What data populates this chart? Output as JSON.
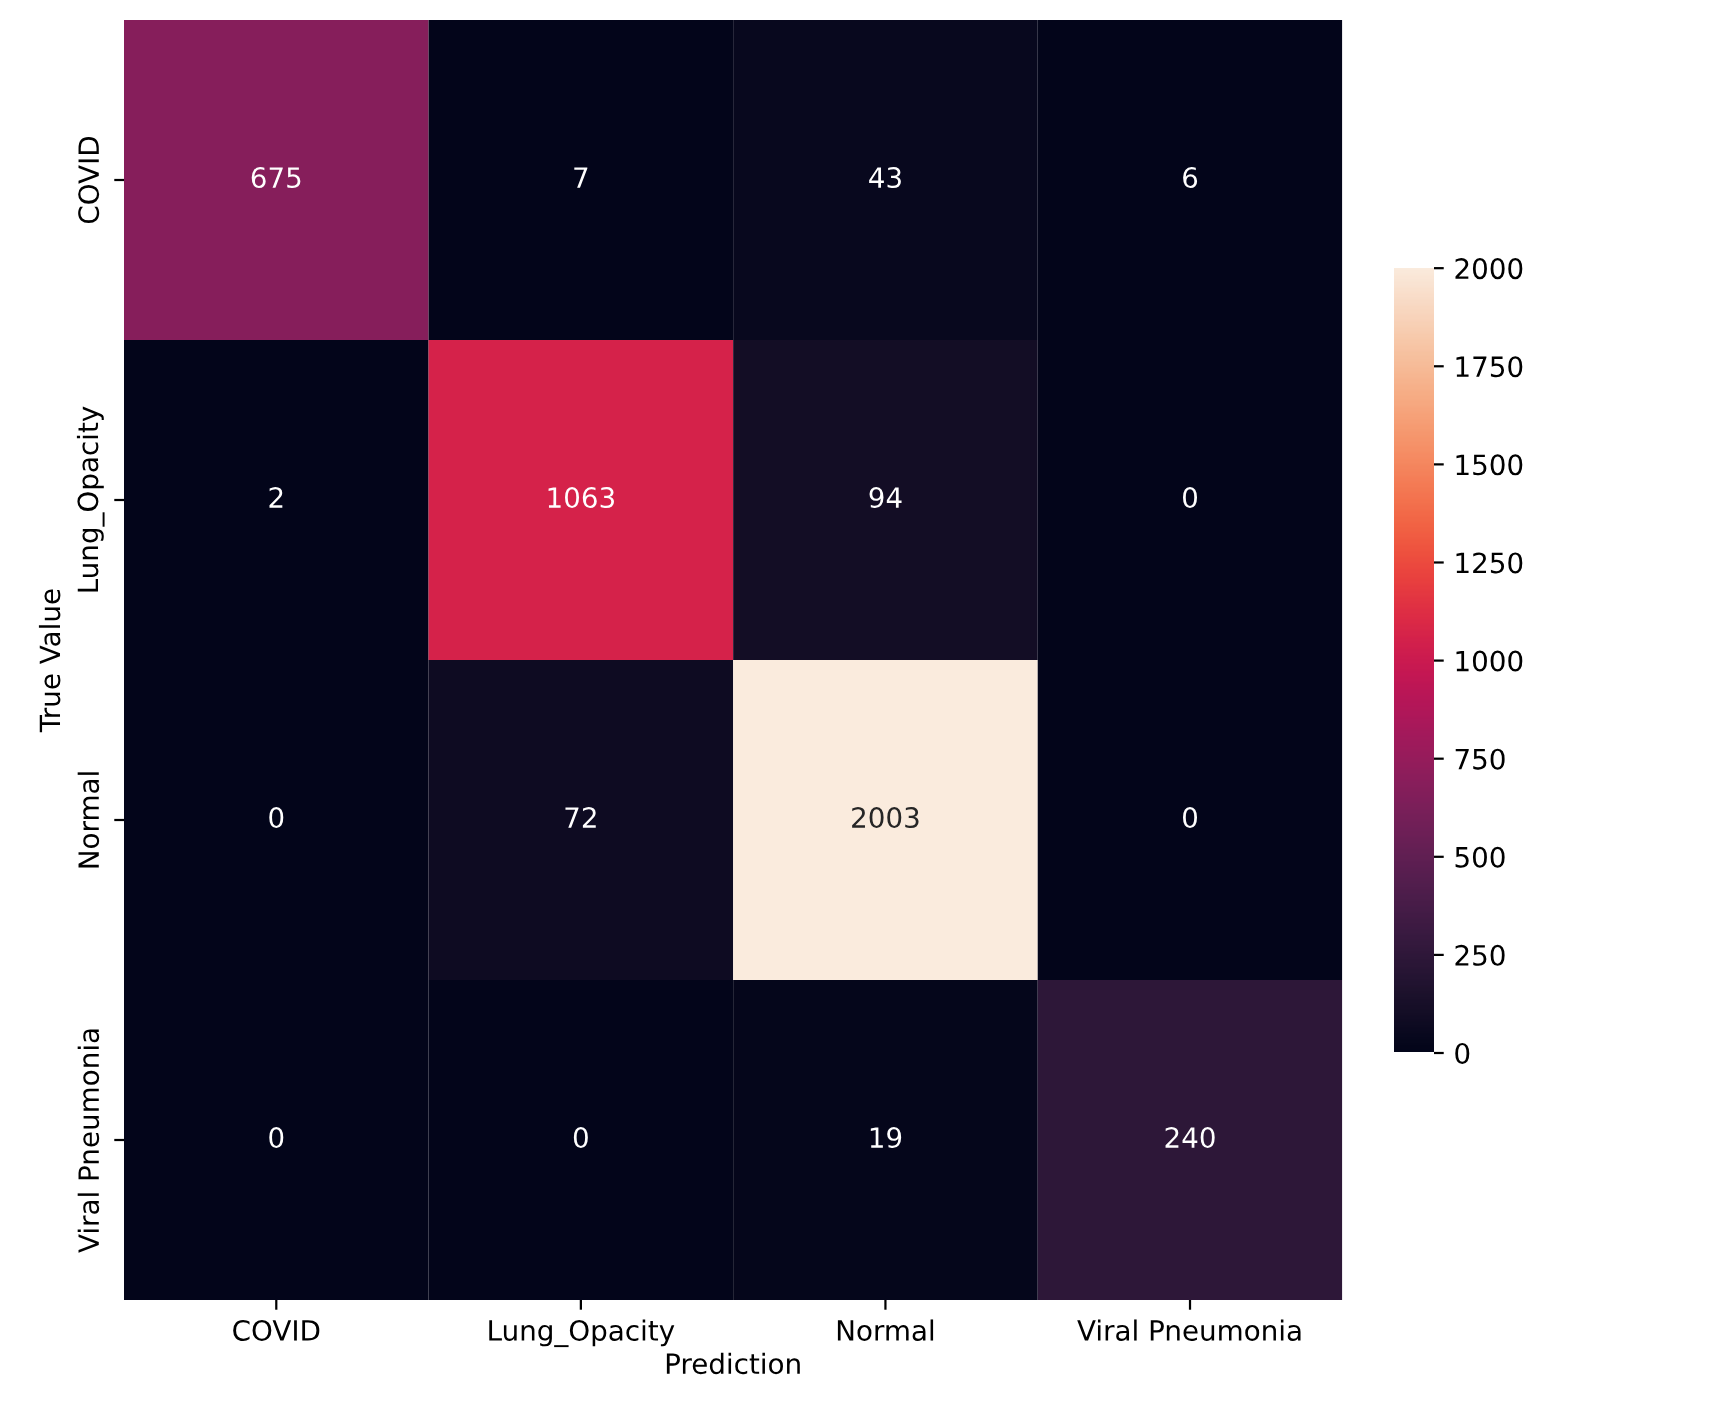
{
  "chart_data": {
    "type": "heatmap",
    "xlabel": "Prediction",
    "ylabel": "True Value",
    "categories": [
      "COVID",
      "Lung_Opacity",
      "Normal",
      "Viral Pneumonia"
    ],
    "y_categories": [
      "COVID",
      "Lung_Opacity",
      "Normal",
      "Viral Pneumonia"
    ],
    "cells": [
      [
        675,
        7,
        43,
        6
      ],
      [
        2,
        1063,
        94,
        0
      ],
      [
        0,
        72,
        2003,
        0
      ],
      [
        0,
        0,
        19,
        240
      ]
    ],
    "clim": [
      0,
      2003
    ],
    "cticks": [
      0,
      250,
      500,
      750,
      1000,
      1250,
      1500,
      1750,
      2000
    ],
    "data_labels": true
  }
}
